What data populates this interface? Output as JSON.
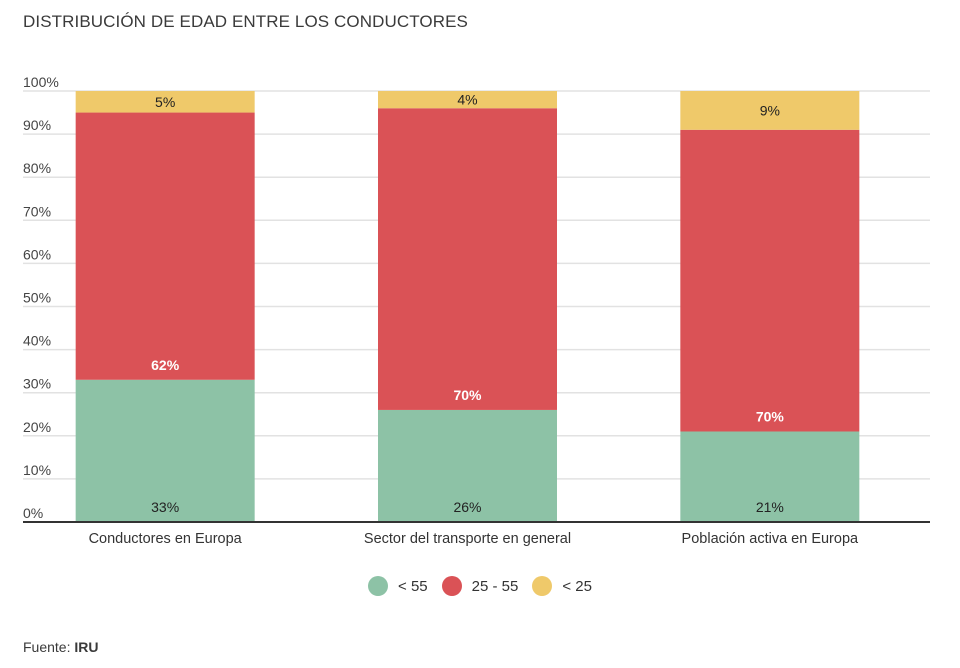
{
  "chart_data": {
    "type": "bar",
    "stacked": true,
    "title": "DISTRIBUCIÓN DE EDAD ENTRE LOS CONDUCTORES",
    "xlabel": "",
    "ylabel": "",
    "ylim": [
      0,
      100
    ],
    "yticks": [
      "0%",
      "10%",
      "20%",
      "30%",
      "40%",
      "50%",
      "60%",
      "70%",
      "80%",
      "90%",
      "100%"
    ],
    "ytick_values": [
      0,
      10,
      20,
      30,
      40,
      50,
      60,
      70,
      80,
      90,
      100
    ],
    "grid": true,
    "legend_position": "bottom-center",
    "categories": [
      "Conductores en Europa",
      "Sector del transporte en general",
      "Población activa en Europa"
    ],
    "series": [
      {
        "name": "< 55",
        "color": "#8dc2a6",
        "values": [
          33,
          26,
          21
        ],
        "labels": [
          "33%",
          "26%",
          "21%"
        ],
        "label_color": "#222222"
      },
      {
        "name": "25 - 55",
        "color": "#da5256",
        "values": [
          62,
          70,
          70
        ],
        "labels": [
          "62%",
          "70%",
          "70%"
        ],
        "label_color": "#ffffff"
      },
      {
        "name": "< 25",
        "color": "#efc96a",
        "values": [
          5,
          4,
          9
        ],
        "labels": [
          "5%",
          "4%",
          "9%"
        ],
        "label_color": "#222222"
      }
    ]
  },
  "source": {
    "prefix": "Fuente:",
    "name": "IRU"
  }
}
